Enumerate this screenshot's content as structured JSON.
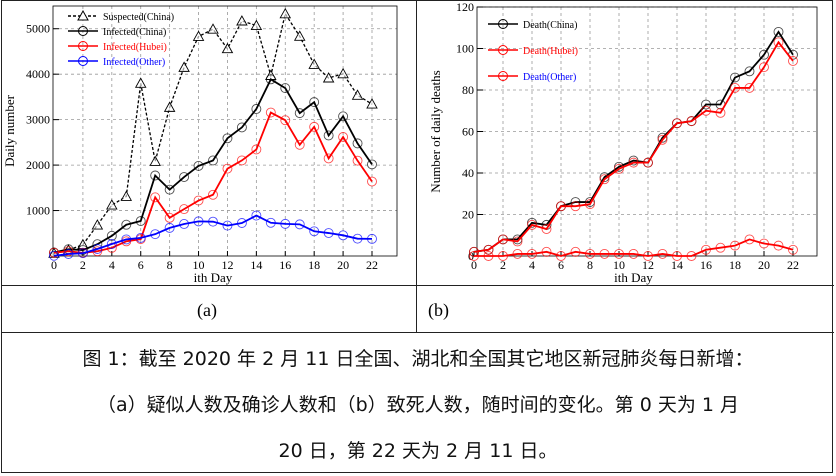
{
  "chart_data": [
    {
      "type": "line",
      "ylabel": "Daily number",
      "xlabel": "ith Day",
      "xlim": [
        0,
        22
      ],
      "ylim": [
        0,
        5500
      ],
      "xticks": [
        0,
        2,
        4,
        6,
        8,
        10,
        12,
        14,
        16,
        18,
        20,
        22
      ],
      "yticks": [
        1000,
        2000,
        3000,
        4000,
        5000
      ],
      "grid": true,
      "legend": "top-left",
      "x": [
        0,
        1,
        2,
        3,
        4,
        5,
        6,
        7,
        8,
        9,
        10,
        11,
        12,
        13,
        14,
        15,
        16,
        17,
        18,
        19,
        20,
        21,
        22
      ],
      "series": [
        {
          "name": "Suspected(China)",
          "color": "#000000",
          "dash": true,
          "marker": "triangle",
          "values": [
            60,
            130,
            250,
            680,
            1120,
            1310,
            3800,
            2080,
            3270,
            4150,
            4830,
            4990,
            4560,
            5170,
            5070,
            3971,
            5328,
            4833,
            4214,
            3916,
            4008,
            3536,
            3342
          ]
        },
        {
          "name": "Infected(China)",
          "color": "#000000",
          "marker": "circle",
          "values": [
            77,
            149,
            131,
            259,
            444,
            688,
            769,
            1771,
            1459,
            1737,
            1982,
            2102,
            2590,
            2829,
            3235,
            3887,
            3694,
            3143,
            3385,
            2652,
            3073,
            2478,
            2015
          ]
        },
        {
          "name": "Infected(Hubei)",
          "color": "#ff0000",
          "marker": "circle",
          "values": [
            72,
            105,
            69,
            105,
            180,
            323,
            371,
            1291,
            840,
            1032,
            1220,
            1347,
            1921,
            2103,
            2345,
            3156,
            2987,
            2447,
            2841,
            2147,
            2618,
            2097,
            1638
          ]
        },
        {
          "name": "Infected(Other)",
          "color": "#0000ff",
          "marker": "circle",
          "values": [
            5,
            44,
            62,
            154,
            264,
            365,
            398,
            480,
            619,
            705,
            762,
            755,
            669,
            726,
            890,
            731,
            707,
            696,
            544,
            505,
            455,
            381,
            377
          ]
        }
      ]
    },
    {
      "type": "line",
      "ylabel": "Number of daily deaths",
      "xlabel": "ith Day",
      "xlim": [
        0,
        22
      ],
      "ylim": [
        0,
        120
      ],
      "xticks": [
        0,
        2,
        4,
        6,
        8,
        10,
        12,
        14,
        16,
        18,
        20,
        22
      ],
      "yticks": [
        0,
        20,
        40,
        60,
        80,
        100,
        120
      ],
      "grid": true,
      "legend": "top-left",
      "x": [
        0,
        1,
        2,
        3,
        4,
        5,
        6,
        7,
        8,
        9,
        10,
        11,
        12,
        13,
        14,
        15,
        16,
        17,
        18,
        19,
        20,
        21,
        22
      ],
      "series": [
        {
          "name": "Death(China)",
          "color": "#000000",
          "labelColor": "#000000",
          "marker": "circle",
          "values": [
            2,
            3,
            8,
            8,
            16,
            15,
            24,
            26,
            26,
            38,
            43,
            46,
            45,
            57,
            64,
            65,
            73,
            73,
            86,
            89,
            97,
            108,
            97
          ]
        },
        {
          "name": "Death(Hubei)",
          "color": "#ff0000",
          "labelColor": "#ff0000",
          "marker": "circle",
          "values": [
            2,
            3,
            8,
            7,
            15,
            13,
            24,
            24,
            25,
            37,
            42,
            45,
            45,
            56,
            64,
            65,
            70,
            69,
            81,
            81,
            91,
            103,
            94
          ]
        },
        {
          "name": "Death(Other)",
          "color": "#ff0000",
          "labelColor": "#0000ff",
          "marker": "circle",
          "values": [
            0,
            0,
            0,
            1,
            1,
            2,
            0,
            2,
            1,
            1,
            1,
            1,
            0,
            1,
            0,
            0,
            3,
            4,
            5,
            8,
            6,
            5,
            3
          ]
        }
      ]
    }
  ],
  "panels": {
    "a": "(a)",
    "b": "(b)"
  },
  "caption": {
    "line1": "图 1：截至 2020 年 2 月 11 日全国、湖北和全国其它地区新冠肺炎每日新增：",
    "line2": "（a）疑似人数及确诊人数和（b）致死人数，随时间的变化。第 0 天为 1 月",
    "line3": "20 日，第 22 天为 2 月 11 日。"
  }
}
